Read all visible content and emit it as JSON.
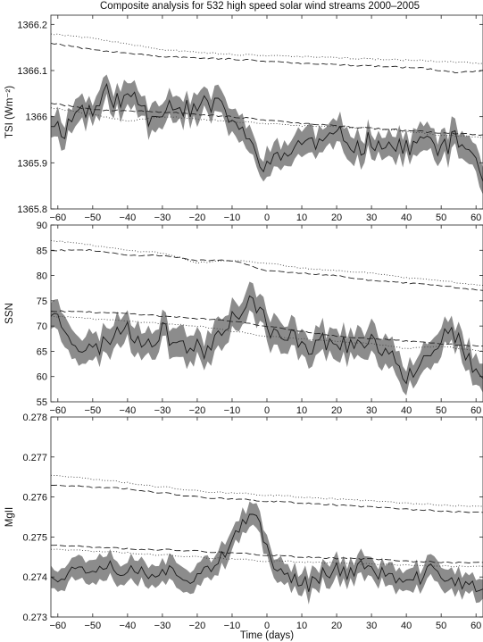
{
  "title": "Composite analysis for 532 high speed solar wind streams 2000–2005",
  "xlabel": "Time (days)",
  "chart_data": [
    {
      "type": "line",
      "ylabel": "TSI (Wm⁻²)",
      "xlim": [
        -62,
        62
      ],
      "ylim": [
        1365.8,
        1366.22
      ],
      "xticks": [
        -60,
        -50,
        -40,
        -30,
        -20,
        -10,
        0,
        10,
        20,
        30,
        40,
        50,
        60
      ],
      "yticks": [
        1365.8,
        1365.9,
        1366,
        1366.1,
        1366.2
      ],
      "ytick_labels": [
        "1365.8",
        "1365.9",
        "1366",
        "1366.1",
        "1366.2"
      ],
      "xtick_labels": [
        "−60",
        "−50",
        "−40",
        "−30",
        "−20",
        "−10",
        "0",
        "10",
        "20",
        "30",
        "40",
        "50",
        "60"
      ],
      "seed": 11,
      "mean_nodes": [
        [
          -62,
          1365.99
        ],
        [
          -58,
          1365.97
        ],
        [
          -54,
          1366.02
        ],
        [
          -50,
          1366.01
        ],
        [
          -46,
          1366.05
        ],
        [
          -42,
          1366.03
        ],
        [
          -38,
          1366.05
        ],
        [
          -34,
          1366.0
        ],
        [
          -30,
          1366.02
        ],
        [
          -26,
          1366.03
        ],
        [
          -22,
          1366.01
        ],
        [
          -18,
          1366.03
        ],
        [
          -14,
          1366.02
        ],
        [
          -10,
          1366.0
        ],
        [
          -7,
          1365.96
        ],
        [
          -4,
          1365.93
        ],
        [
          -1,
          1365.9
        ],
        [
          2,
          1365.9
        ],
        [
          6,
          1365.92
        ],
        [
          10,
          1365.95
        ],
        [
          14,
          1365.94
        ],
        [
          18,
          1365.95
        ],
        [
          22,
          1365.96
        ],
        [
          26,
          1365.93
        ],
        [
          30,
          1365.95
        ],
        [
          34,
          1365.94
        ],
        [
          38,
          1365.93
        ],
        [
          42,
          1365.94
        ],
        [
          46,
          1365.95
        ],
        [
          50,
          1365.93
        ],
        [
          54,
          1365.95
        ],
        [
          58,
          1365.93
        ],
        [
          62,
          1365.88
        ]
      ],
      "noise": 0.022,
      "band_half": [
        0.02,
        0.035
      ],
      "dashed_nodes": [
        [
          -62,
          1366.16
        ],
        [
          -50,
          1366.145
        ],
        [
          -30,
          1366.13
        ],
        [
          -10,
          1366.125
        ],
        [
          10,
          1366.115
        ],
        [
          30,
          1366.11
        ],
        [
          45,
          1366.105
        ],
        [
          55,
          1366.095
        ],
        [
          62,
          1366.1
        ]
      ],
      "dotted_nodes": [
        [
          -62,
          1366.18
        ],
        [
          -50,
          1366.17
        ],
        [
          -30,
          1366.145
        ],
        [
          -10,
          1366.135
        ],
        [
          10,
          1366.13
        ],
        [
          30,
          1366.125
        ],
        [
          50,
          1366.12
        ],
        [
          62,
          1366.115
        ]
      ],
      "dashed_low_nodes": [
        [
          -62,
          1366.03
        ],
        [
          -50,
          1366.015
        ],
        [
          -30,
          1366.01
        ],
        [
          -10,
          1366.0
        ],
        [
          10,
          1365.985
        ],
        [
          30,
          1365.975
        ],
        [
          50,
          1365.965
        ],
        [
          62,
          1365.96
        ]
      ],
      "dotted_low_nodes": [
        [
          -62,
          1366.02
        ],
        [
          -50,
          1366.005
        ],
        [
          -40,
          1365.99
        ],
        [
          -30,
          1366.0
        ],
        [
          -10,
          1365.99
        ],
        [
          10,
          1365.98
        ],
        [
          30,
          1365.975
        ],
        [
          50,
          1365.96
        ],
        [
          62,
          1365.955
        ]
      ]
    },
    {
      "type": "line",
      "ylabel": "SSN",
      "xlim": [
        -62,
        62
      ],
      "ylim": [
        55,
        90
      ],
      "xticks": [
        -60,
        -50,
        -40,
        -30,
        -20,
        -10,
        0,
        10,
        20,
        30,
        40,
        50,
        60
      ],
      "yticks": [
        55,
        60,
        65,
        70,
        75,
        80,
        85,
        90
      ],
      "ytick_labels": [
        "55",
        "60",
        "65",
        "70",
        "75",
        "80",
        "85",
        "90"
      ],
      "xtick_labels": [
        "−60",
        "−50",
        "−40",
        "−30",
        "−20",
        "−10",
        "0",
        "10",
        "20",
        "30",
        "40",
        "50",
        "60"
      ],
      "seed": 23,
      "mean_nodes": [
        [
          -62,
          73
        ],
        [
          -58,
          70
        ],
        [
          -54,
          66
        ],
        [
          -50,
          65
        ],
        [
          -46,
          67
        ],
        [
          -42,
          70
        ],
        [
          -38,
          68
        ],
        [
          -34,
          67
        ],
        [
          -30,
          69
        ],
        [
          -26,
          67
        ],
        [
          -22,
          66
        ],
        [
          -18,
          65
        ],
        [
          -14,
          69
        ],
        [
          -10,
          72
        ],
        [
          -7,
          73
        ],
        [
          -4,
          75
        ],
        [
          -2,
          74
        ],
        [
          0,
          70
        ],
        [
          4,
          67
        ],
        [
          8,
          68
        ],
        [
          12,
          66
        ],
        [
          16,
          67
        ],
        [
          20,
          67
        ],
        [
          24,
          66
        ],
        [
          28,
          67
        ],
        [
          32,
          66
        ],
        [
          36,
          65
        ],
        [
          40,
          60
        ],
        [
          44,
          63
        ],
        [
          48,
          66
        ],
        [
          52,
          69
        ],
        [
          56,
          66
        ],
        [
          60,
          60
        ],
        [
          62,
          58
        ]
      ],
      "noise": 1.9,
      "band_half": [
        2.2,
        3.2
      ],
      "dashed_nodes": [
        [
          -62,
          85
        ],
        [
          -50,
          85
        ],
        [
          -40,
          84
        ],
        [
          -30,
          84
        ],
        [
          -20,
          83
        ],
        [
          -10,
          83
        ],
        [
          0,
          81
        ],
        [
          10,
          80.5
        ],
        [
          20,
          80
        ],
        [
          30,
          79
        ],
        [
          40,
          78.5
        ],
        [
          50,
          78
        ],
        [
          62,
          77
        ]
      ],
      "dotted_nodes": [
        [
          -62,
          87
        ],
        [
          -50,
          86
        ],
        [
          -40,
          85
        ],
        [
          -30,
          84.5
        ],
        [
          -20,
          82.5
        ],
        [
          -10,
          83
        ],
        [
          0,
          82.5
        ],
        [
          10,
          81.5
        ],
        [
          20,
          81
        ],
        [
          30,
          80.5
        ],
        [
          40,
          79.5
        ],
        [
          50,
          79
        ],
        [
          62,
          78
        ]
      ],
      "dashed_low_nodes": [
        [
          -62,
          73
        ],
        [
          -40,
          72.5
        ],
        [
          -20,
          71.5
        ],
        [
          -10,
          71
        ],
        [
          0,
          70
        ],
        [
          10,
          69
        ],
        [
          20,
          68
        ],
        [
          30,
          67.5
        ],
        [
          40,
          67
        ],
        [
          50,
          66.5
        ],
        [
          62,
          66
        ]
      ],
      "dotted_low_nodes": [
        [
          -62,
          72
        ],
        [
          -40,
          71
        ],
        [
          -20,
          70
        ],
        [
          -10,
          69
        ],
        [
          0,
          68
        ],
        [
          10,
          67.5
        ],
        [
          20,
          67
        ],
        [
          30,
          66.5
        ],
        [
          40,
          65.5
        ],
        [
          50,
          66
        ],
        [
          62,
          65
        ]
      ]
    },
    {
      "type": "line",
      "ylabel": "MgII",
      "xlim": [
        -62,
        62
      ],
      "ylim": [
        0.273,
        0.278
      ],
      "xticks": [
        -60,
        -50,
        -40,
        -30,
        -20,
        -10,
        0,
        10,
        20,
        30,
        40,
        50,
        60
      ],
      "yticks": [
        0.273,
        0.274,
        0.275,
        0.276,
        0.277,
        0.278
      ],
      "ytick_labels": [
        "0.273",
        "0.274",
        "0.275",
        "0.276",
        "0.277",
        "0.278"
      ],
      "xtick_labels": [
        "−60",
        "−50",
        "−40",
        "−30",
        "−20",
        "−10",
        "0",
        "10",
        "20",
        "30",
        "40",
        "50",
        "60"
      ],
      "xlabel": "Time (days)",
      "seed": 37,
      "mean_nodes": [
        [
          -62,
          0.2741
        ],
        [
          -58,
          0.274
        ],
        [
          -54,
          0.2743
        ],
        [
          -50,
          0.2742
        ],
        [
          -46,
          0.2744
        ],
        [
          -42,
          0.2741
        ],
        [
          -38,
          0.2742
        ],
        [
          -34,
          0.2741
        ],
        [
          -30,
          0.2742
        ],
        [
          -26,
          0.2741
        ],
        [
          -22,
          0.274
        ],
        [
          -18,
          0.2742
        ],
        [
          -14,
          0.2744
        ],
        [
          -11,
          0.2746
        ],
        [
          -8,
          0.2752
        ],
        [
          -5,
          0.2754
        ],
        [
          -3,
          0.2756
        ],
        [
          -1,
          0.275
        ],
        [
          1,
          0.2745
        ],
        [
          4,
          0.2741
        ],
        [
          8,
          0.274
        ],
        [
          12,
          0.2738
        ],
        [
          16,
          0.2741
        ],
        [
          20,
          0.2742
        ],
        [
          24,
          0.2741
        ],
        [
          28,
          0.2743
        ],
        [
          32,
          0.2741
        ],
        [
          36,
          0.274
        ],
        [
          40,
          0.2738
        ],
        [
          44,
          0.274
        ],
        [
          48,
          0.2742
        ],
        [
          52,
          0.274
        ],
        [
          56,
          0.2738
        ],
        [
          62,
          0.2737
        ]
      ],
      "noise": 0.00019,
      "band_half": [
        0.00022,
        0.00032
      ],
      "dashed_nodes": [
        [
          -62,
          0.2763
        ],
        [
          -50,
          0.27625
        ],
        [
          -40,
          0.2762
        ],
        [
          -30,
          0.2761
        ],
        [
          -20,
          0.276
        ],
        [
          -10,
          0.27595
        ],
        [
          0,
          0.2759
        ],
        [
          10,
          0.27585
        ],
        [
          20,
          0.2758
        ],
        [
          30,
          0.27575
        ],
        [
          40,
          0.2757
        ],
        [
          50,
          0.27565
        ],
        [
          62,
          0.2756
        ]
      ],
      "dotted_nodes": [
        [
          -62,
          0.27655
        ],
        [
          -50,
          0.27645
        ],
        [
          -40,
          0.27635
        ],
        [
          -30,
          0.27625
        ],
        [
          -20,
          0.27615
        ],
        [
          -10,
          0.2761
        ],
        [
          0,
          0.27605
        ],
        [
          10,
          0.276
        ],
        [
          20,
          0.27595
        ],
        [
          30,
          0.2759
        ],
        [
          40,
          0.27585
        ],
        [
          50,
          0.2758
        ],
        [
          62,
          0.27575
        ]
      ],
      "dashed_low_nodes": [
        [
          -62,
          0.2748
        ],
        [
          -50,
          0.27475
        ],
        [
          -40,
          0.2747
        ],
        [
          -30,
          0.27468
        ],
        [
          -20,
          0.27465
        ],
        [
          -10,
          0.2746
        ],
        [
          0,
          0.27455
        ],
        [
          10,
          0.2745
        ],
        [
          20,
          0.27447
        ],
        [
          30,
          0.27445
        ],
        [
          40,
          0.2744
        ],
        [
          50,
          0.27437
        ],
        [
          62,
          0.27435
        ]
      ],
      "dotted_low_nodes": [
        [
          -62,
          0.2747
        ],
        [
          -50,
          0.27465
        ],
        [
          -40,
          0.2746
        ],
        [
          -30,
          0.27455
        ],
        [
          -20,
          0.2745
        ],
        [
          -10,
          0.27445
        ],
        [
          0,
          0.2744
        ],
        [
          10,
          0.27438
        ],
        [
          20,
          0.27435
        ],
        [
          30,
          0.27432
        ],
        [
          40,
          0.2743
        ],
        [
          50,
          0.27428
        ],
        [
          62,
          0.27425
        ]
      ]
    }
  ]
}
